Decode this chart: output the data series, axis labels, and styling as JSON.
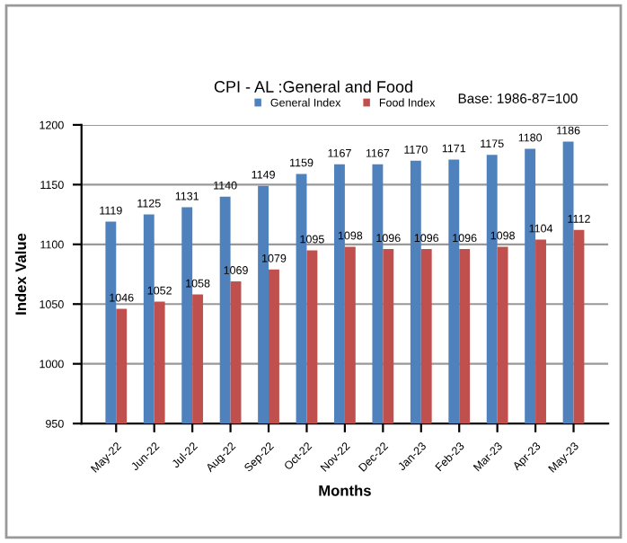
{
  "chart_data": {
    "type": "bar",
    "title": "CPI - AL :General and Food",
    "annotations": [
      "Base: 1986-87=100"
    ],
    "xlabel": "Months",
    "ylabel": "Index Value",
    "categories": [
      "May-22",
      "Jun-22",
      "Jul-22",
      "Aug-22",
      "Sep-22",
      "Oct-22",
      "Nov-22",
      "Dec-22",
      "Jan-23",
      "Feb-23",
      "Mar-23",
      "Apr-23",
      "May-23"
    ],
    "series": [
      {
        "name": "General Index",
        "color": "#4f81bd",
        "values": [
          1119,
          1125,
          1131,
          1140,
          1149,
          1159,
          1167,
          1167,
          1170,
          1171,
          1175,
          1180,
          1186
        ]
      },
      {
        "name": "Food Index",
        "color": "#c0504d",
        "values": [
          1046,
          1052,
          1058,
          1069,
          1079,
          1095,
          1098,
          1096,
          1096,
          1096,
          1098,
          1104,
          1112
        ]
      }
    ],
    "ylim": [
      950,
      1200
    ],
    "yticks": [
      950,
      1000,
      1050,
      1100,
      1150,
      1200
    ],
    "grid": "y",
    "legend": "top",
    "data_labels": true
  }
}
